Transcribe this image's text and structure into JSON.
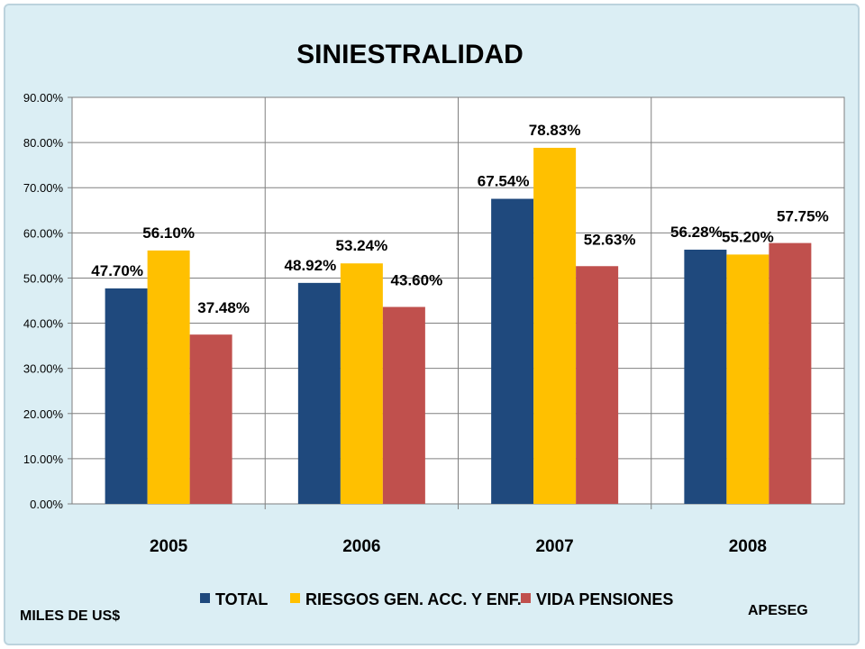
{
  "footer": {
    "left_note": "MILES DE US$",
    "right_note": "APESEG"
  },
  "chart_data": {
    "type": "bar",
    "title": "SINIESTRALIDAD",
    "categories": [
      "2005",
      "2006",
      "2007",
      "2008"
    ],
    "series": [
      {
        "name": "TOTAL",
        "color": "#1f497d",
        "values": [
          47.7,
          48.92,
          67.54,
          56.28
        ],
        "labels": [
          "47.70%",
          "48.92%",
          "67.54%",
          "56.28%"
        ]
      },
      {
        "name": "RIESGOS GEN. ACC. Y ENF.",
        "color": "#ffc000",
        "values": [
          56.1,
          53.24,
          78.83,
          55.2
        ],
        "labels": [
          "56.10%",
          "53.24%",
          "78.83%",
          "55.20%"
        ]
      },
      {
        "name": "VIDA   PENSIONES",
        "color": "#c0504d",
        "values": [
          37.48,
          43.6,
          52.63,
          57.75
        ],
        "labels": [
          "37.48%",
          "43.60%",
          "52.63%",
          "57.75%"
        ]
      }
    ],
    "ylim": [
      0,
      90
    ],
    "yticks": [
      "0.00%",
      "10.00%",
      "20.00%",
      "30.00%",
      "40.00%",
      "50.00%",
      "60.00%",
      "70.00%",
      "80.00%",
      "90.00%"
    ],
    "grid": true,
    "legend_position": "bottom"
  }
}
